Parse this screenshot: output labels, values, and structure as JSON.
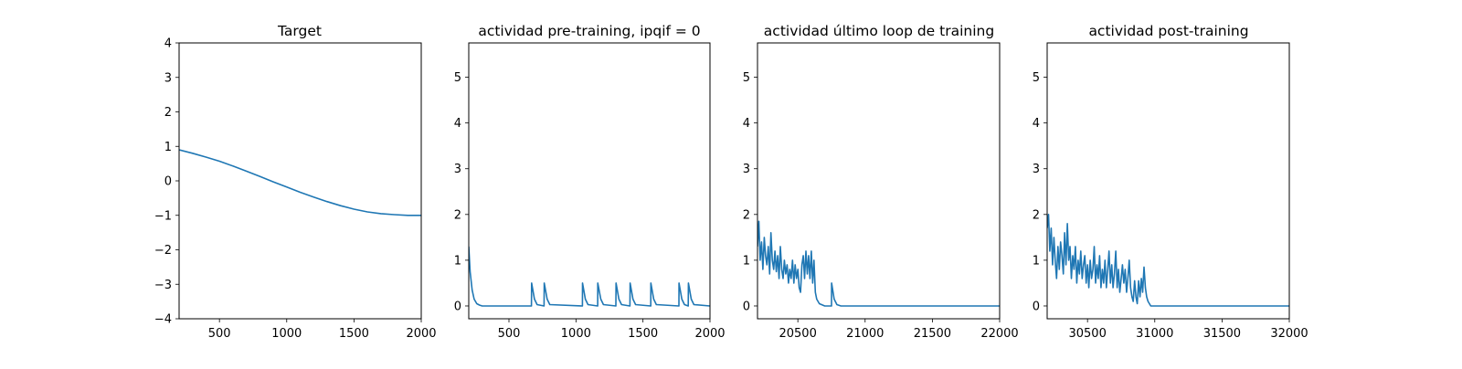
{
  "colors": {
    "series": "#1f77b4",
    "axes": "#000000",
    "background": "#ffffff"
  },
  "chart_data": [
    {
      "type": "line",
      "title": "Target",
      "xlabel": "",
      "ylabel": "",
      "xlim": [
        200,
        2000
      ],
      "ylim": [
        -4,
        4
      ],
      "xticks": [
        500,
        1000,
        1500,
        2000
      ],
      "yticks": [
        -4,
        -3,
        -2,
        -1,
        0,
        1,
        2,
        3,
        4
      ],
      "ytick_labels": [
        "−4",
        "−3",
        "−2",
        "−1",
        "0",
        "1",
        "2",
        "3",
        "4"
      ],
      "grid": false,
      "series": [
        {
          "x": [
            200,
            300,
            400,
            500,
            600,
            700,
            800,
            900,
            1000,
            1100,
            1200,
            1300,
            1400,
            1500,
            1600,
            1700,
            1800,
            1900,
            2000
          ],
          "y": [
            0.9,
            0.8,
            0.69,
            0.57,
            0.43,
            0.28,
            0.13,
            -0.03,
            -0.18,
            -0.33,
            -0.47,
            -0.6,
            -0.72,
            -0.82,
            -0.9,
            -0.95,
            -0.98,
            -1.0,
            -1.0
          ]
        }
      ]
    },
    {
      "type": "line",
      "title": "actividad pre-training, ipqif = 0",
      "xlabel": "",
      "ylabel": "",
      "xlim": [
        200,
        2000
      ],
      "ylim": [
        -0.28,
        5.75
      ],
      "xticks": [
        500,
        1000,
        1500,
        2000
      ],
      "yticks": [
        0,
        1,
        2,
        3,
        4,
        5
      ],
      "grid": false,
      "series": [
        {
          "x": [
            200,
            210,
            225,
            240,
            260,
            280,
            300,
            350,
            668,
            669,
            690,
            710,
            762,
            763,
            785,
            805,
            1048,
            1049,
            1070,
            1090,
            1162,
            1163,
            1185,
            1205,
            1298,
            1299,
            1320,
            1340,
            1403,
            1404,
            1425,
            1445,
            1558,
            1559,
            1580,
            1600,
            1768,
            1769,
            1790,
            1810,
            1838,
            1839,
            1860,
            1880,
            2000
          ],
          "y": [
            1.3,
            0.75,
            0.35,
            0.15,
            0.05,
            0.02,
            0.0,
            0.0,
            0.0,
            0.5,
            0.15,
            0.03,
            0.0,
            0.5,
            0.15,
            0.03,
            0.0,
            0.5,
            0.15,
            0.03,
            0.0,
            0.5,
            0.15,
            0.03,
            0.0,
            0.5,
            0.15,
            0.03,
            0.0,
            0.5,
            0.15,
            0.03,
            0.0,
            0.5,
            0.15,
            0.03,
            0.0,
            0.5,
            0.15,
            0.03,
            0.0,
            0.5,
            0.15,
            0.03,
            0.0
          ]
        }
      ]
    },
    {
      "type": "line",
      "title": "actividad último loop de training",
      "xlabel": "",
      "ylabel": "",
      "xlim": [
        20200,
        22000
      ],
      "ylim": [
        -0.28,
        5.75
      ],
      "xticks": [
        20500,
        21000,
        21500,
        22000
      ],
      "yticks": [
        0,
        1,
        2,
        3,
        4,
        5
      ],
      "grid": false,
      "series": [
        {
          "x": [
            20200,
            20210,
            20220,
            20230,
            20240,
            20250,
            20260,
            20270,
            20280,
            20290,
            20300,
            20310,
            20320,
            20330,
            20340,
            20350,
            20360,
            20370,
            20380,
            20390,
            20400,
            20410,
            20420,
            20430,
            20440,
            20450,
            20460,
            20470,
            20480,
            20490,
            20500,
            20510,
            20520,
            20530,
            20540,
            20550,
            20560,
            20570,
            20580,
            20590,
            20600,
            20610,
            20620,
            20630,
            20640,
            20660,
            20700,
            20750,
            20751,
            20770,
            20790,
            20820,
            21000,
            21500,
            22000
          ],
          "y": [
            1.3,
            1.85,
            1.0,
            1.4,
            0.8,
            1.5,
            1.1,
            0.9,
            1.3,
            0.7,
            1.6,
            1.0,
            0.8,
            1.2,
            0.75,
            1.1,
            0.6,
            1.3,
            0.8,
            0.6,
            1.0,
            0.7,
            0.9,
            0.5,
            0.8,
            0.6,
            1.0,
            0.5,
            0.9,
            0.6,
            0.8,
            0.4,
            0.3,
            0.9,
            1.1,
            0.6,
            1.2,
            0.7,
            1.1,
            0.6,
            1.2,
            0.5,
            1.0,
            0.3,
            0.15,
            0.05,
            0.0,
            0.0,
            0.5,
            0.15,
            0.03,
            0.0,
            0.0,
            0.0,
            0.0
          ]
        }
      ]
    },
    {
      "type": "line",
      "title": "actividad post-training",
      "xlabel": "",
      "ylabel": "",
      "xlim": [
        30200,
        32000
      ],
      "ylim": [
        -0.28,
        5.75
      ],
      "xticks": [
        30500,
        31000,
        31500,
        32000
      ],
      "yticks": [
        0,
        1,
        2,
        3,
        4,
        5
      ],
      "grid": false,
      "series": [
        {
          "x": [
            30200,
            30210,
            30220,
            30230,
            30240,
            30250,
            30260,
            30270,
            30280,
            30290,
            30300,
            30310,
            30320,
            30330,
            30340,
            30350,
            30360,
            30370,
            30380,
            30390,
            30400,
            30410,
            30420,
            30430,
            30440,
            30450,
            30460,
            30470,
            30480,
            30490,
            30500,
            30510,
            30520,
            30530,
            30540,
            30550,
            30560,
            30570,
            30580,
            30590,
            30600,
            30610,
            30620,
            30630,
            30640,
            30650,
            30660,
            30670,
            30680,
            30690,
            30700,
            30710,
            30720,
            30730,
            30740,
            30750,
            30760,
            30770,
            30780,
            30790,
            30800,
            30810,
            30820,
            30830,
            30840,
            30850,
            30860,
            30870,
            30880,
            30890,
            30900,
            30910,
            30920,
            30930,
            30940,
            30950,
            30960,
            30970,
            30980,
            30990,
            31000,
            31020,
            31050,
            31100,
            31500,
            32000
          ],
          "y": [
            1.7,
            2.0,
            1.2,
            1.7,
            0.9,
            1.5,
            1.0,
            0.6,
            1.3,
            0.8,
            1.4,
            1.1,
            0.7,
            1.6,
            0.9,
            1.8,
            1.0,
            1.3,
            0.6,
            1.1,
            0.8,
            1.3,
            0.5,
            1.0,
            0.7,
            1.2,
            0.6,
            0.9,
            1.1,
            0.5,
            0.9,
            0.4,
            1.0,
            0.6,
            0.8,
            1.3,
            0.5,
            0.9,
            0.6,
            1.1,
            0.4,
            0.8,
            0.5,
            1.0,
            0.4,
            0.8,
            1.2,
            0.5,
            0.9,
            0.4,
            0.7,
            1.2,
            0.4,
            0.8,
            0.3,
            0.6,
            0.9,
            0.5,
            0.8,
            0.3,
            0.6,
            1.0,
            0.4,
            0.2,
            0.1,
            0.55,
            0.2,
            0.05,
            0.55,
            0.2,
            0.6,
            0.3,
            0.85,
            0.4,
            0.2,
            0.1,
            0.05,
            0.0,
            0.0,
            0.0,
            0.0,
            0.0,
            0.0,
            0.0,
            0.0,
            0.0
          ]
        }
      ]
    }
  ]
}
